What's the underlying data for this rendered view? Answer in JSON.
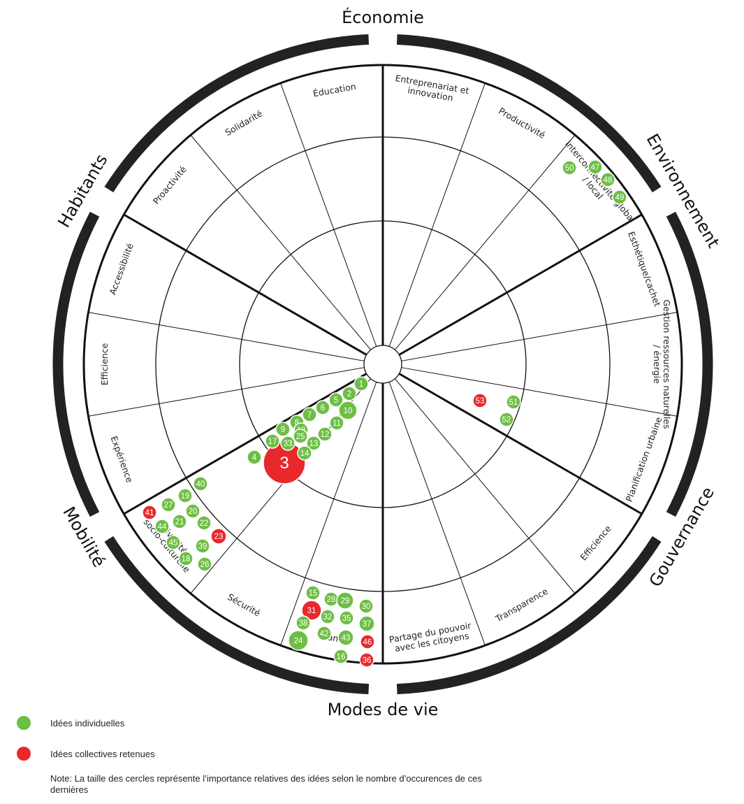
{
  "dimensions": [
    {
      "name": "Économie",
      "sub": [
        "Entreprenariat et innovation",
        "Productivité",
        "Interconnectivité global / local"
      ]
    },
    {
      "name": "Environnement",
      "sub": [
        "Esthétique/cachet",
        "Gestion ressources naturelles / énergie",
        "Planification urbaine"
      ]
    },
    {
      "name": "Gouvernance",
      "sub": [
        "Efficience",
        "Transparence",
        "Partage du pouvoir avec les citoyens"
      ]
    },
    {
      "name": "Modes de vie",
      "sub": [
        "Santé",
        "Sécurité",
        "Vivacité socio-culturelle"
      ]
    },
    {
      "name": "Mobilité",
      "sub": [
        "Expérience",
        "Efficience",
        "Accessibilité"
      ]
    },
    {
      "name": "Habitants",
      "sub": [
        "Proactivité",
        "Solidarité",
        "Éducation"
      ]
    }
  ],
  "ideas": [
    {
      "n": "1",
      "type": "individual",
      "size": 1
    },
    {
      "n": "2",
      "type": "individual",
      "size": 1
    },
    {
      "n": "3",
      "type": "collective",
      "size": 3
    },
    {
      "n": "4",
      "type": "individual",
      "size": 1
    },
    {
      "n": "5",
      "type": "individual",
      "size": 1
    },
    {
      "n": "6",
      "type": "individual",
      "size": 1
    },
    {
      "n": "7",
      "type": "individual",
      "size": 1
    },
    {
      "n": "8",
      "type": "individual",
      "size": 1
    },
    {
      "n": "9",
      "type": "individual",
      "size": 1
    },
    {
      "n": "10",
      "type": "individual",
      "size": 1.3
    },
    {
      "n": "11",
      "type": "individual",
      "size": 1
    },
    {
      "n": "12",
      "type": "individual",
      "size": 1
    },
    {
      "n": "13",
      "type": "individual",
      "size": 1
    },
    {
      "n": "14",
      "type": "individual",
      "size": 1
    },
    {
      "n": "15",
      "type": "individual",
      "size": 1
    },
    {
      "n": "16",
      "type": "individual",
      "size": 1
    },
    {
      "n": "17",
      "type": "individual",
      "size": 1
    },
    {
      "n": "18",
      "type": "individual",
      "size": 1
    },
    {
      "n": "18",
      "type": "individual",
      "size": 1
    },
    {
      "n": "19",
      "type": "individual",
      "size": 1
    },
    {
      "n": "20",
      "type": "individual",
      "size": 1
    },
    {
      "n": "21",
      "type": "individual",
      "size": 1
    },
    {
      "n": "22",
      "type": "individual",
      "size": 1
    },
    {
      "n": "23",
      "type": "collective",
      "size": 1.1
    },
    {
      "n": "24",
      "type": "individual",
      "size": 1.4
    },
    {
      "n": "25",
      "type": "individual",
      "size": 1
    },
    {
      "n": "26",
      "type": "individual",
      "size": 1
    },
    {
      "n": "27",
      "type": "individual",
      "size": 1
    },
    {
      "n": "28",
      "type": "individual",
      "size": 1
    },
    {
      "n": "29",
      "type": "individual",
      "size": 1.2
    },
    {
      "n": "30",
      "type": "individual",
      "size": 1
    },
    {
      "n": "31",
      "type": "collective",
      "size": 1.4
    },
    {
      "n": "32",
      "type": "individual",
      "size": 1
    },
    {
      "n": "33",
      "type": "individual",
      "size": 1
    },
    {
      "n": "35",
      "type": "individual",
      "size": 1
    },
    {
      "n": "36",
      "type": "collective",
      "size": 1
    },
    {
      "n": "37",
      "type": "individual",
      "size": 1.1
    },
    {
      "n": "38",
      "type": "individual",
      "size": 1
    },
    {
      "n": "39",
      "type": "individual",
      "size": 1
    },
    {
      "n": "40",
      "type": "individual",
      "size": 1
    },
    {
      "n": "41",
      "type": "collective",
      "size": 1
    },
    {
      "n": "42",
      "type": "individual",
      "size": 1
    },
    {
      "n": "43",
      "type": "individual",
      "size": 1.1
    },
    {
      "n": "44",
      "type": "individual",
      "size": 1
    },
    {
      "n": "45",
      "type": "individual",
      "size": 1
    },
    {
      "n": "46",
      "type": "collective",
      "size": 1
    },
    {
      "n": "47",
      "type": "individual",
      "size": 1
    },
    {
      "n": "48",
      "type": "individual",
      "size": 1
    },
    {
      "n": "49",
      "type": "individual",
      "size": 1
    },
    {
      "n": "50",
      "type": "individual",
      "size": 1
    },
    {
      "n": "51",
      "type": "individual",
      "size": 1
    },
    {
      "n": "52",
      "type": "individual",
      "size": 1
    },
    {
      "n": "53",
      "type": "collective",
      "size": 1
    }
  ],
  "legend": {
    "individual": "Idées individuelles",
    "collective": "Idées collectives retenues"
  },
  "note": "Note:  La taille des cercles représente l’importance relatives des idées selon le nombre d’occurences de ces dernières",
  "colors": {
    "individual": "#6dbe45",
    "collective": "#e8282b",
    "lines": "#111111"
  }
}
